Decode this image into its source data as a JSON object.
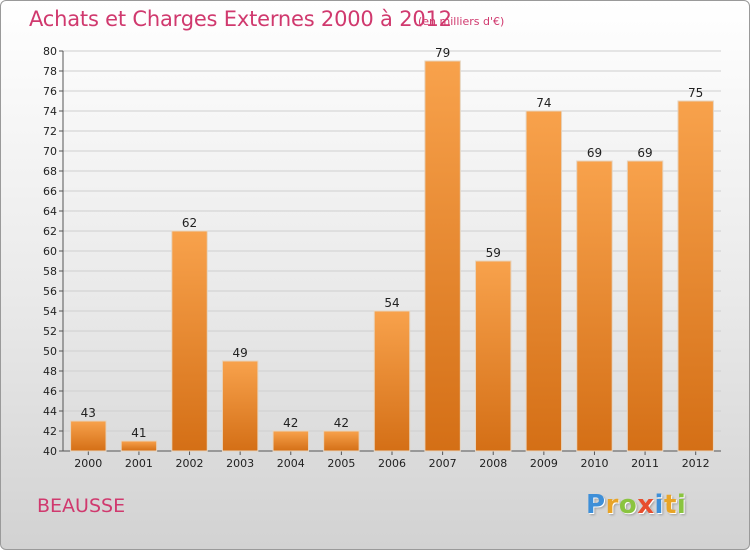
{
  "chart_data": {
    "type": "bar",
    "title": "Achats et Charges Externes 2000 à 2012",
    "subtitle": "(en milliers d'€)",
    "categories": [
      "2000",
      "2001",
      "2002",
      "2003",
      "2004",
      "2005",
      "2006",
      "2007",
      "2008",
      "2009",
      "2010",
      "2011",
      "2012"
    ],
    "values": [
      43,
      41,
      62,
      49,
      42,
      42,
      54,
      79,
      59,
      74,
      69,
      69,
      75
    ],
    "ylim": [
      40,
      80
    ],
    "ytick_step": 2,
    "grid": true,
    "bar_color_top": "#f8a24c",
    "bar_color_bottom": "#d46f16"
  },
  "footer": {
    "town": "BEAUSSE",
    "logo_letters": [
      {
        "ch": "P",
        "color": "#3e8fd8"
      },
      {
        "ch": "r",
        "color": "#e8a427"
      },
      {
        "ch": "o",
        "color": "#8ac43f"
      },
      {
        "ch": "x",
        "color": "#e74e2e"
      },
      {
        "ch": "i",
        "color": "#3e8fd8"
      },
      {
        "ch": "t",
        "color": "#e8a427"
      },
      {
        "ch": "i",
        "color": "#8ac43f"
      }
    ]
  }
}
